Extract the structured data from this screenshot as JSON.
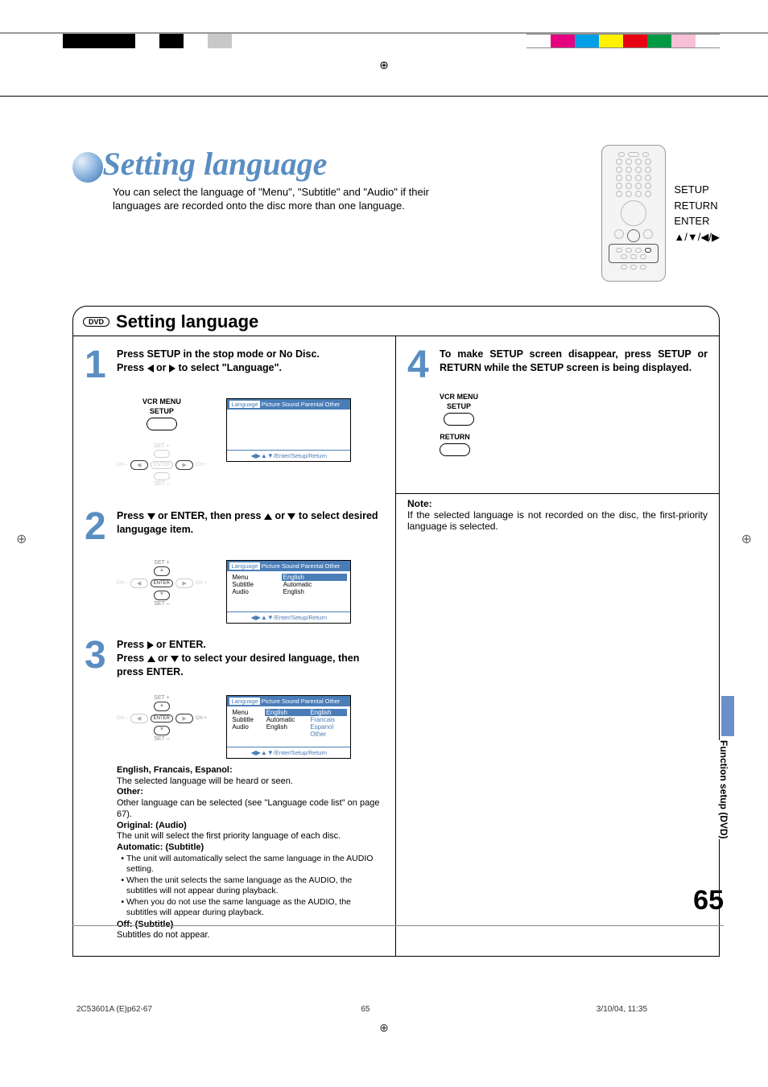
{
  "colorbar_left": [
    "#000000",
    "#000000",
    "#000000",
    "#ffffff",
    "#000000",
    "#ffffff",
    "#c8c8c8",
    "#ffffff"
  ],
  "colorbar_right": [
    "#ffffff",
    "#e4007f",
    "#00a0e9",
    "#fff100",
    "#e60012",
    "#009944",
    "#f6c1d6",
    "#ffffff"
  ],
  "title": "Setting language",
  "subtitle": "You can select the language of \"Menu\", \"Subtitle\" and \"Audio\" if their languages are recorded onto the disc more than one language.",
  "remote_labels": [
    "SETUP",
    "RETURN",
    "ENTER",
    "▲/▼/◀/▶"
  ],
  "section_badge": "DVD",
  "section_title": "Setting language",
  "step1": {
    "line1": "Press SETUP in the stop mode or No Disc.",
    "line2a": "Press ",
    "line2b": " or ",
    "line2c": " to select \"Language\".",
    "remote_lbl1": "VCR MENU",
    "remote_lbl2": "SETUP",
    "osd_tabs": [
      "Language",
      "Picture",
      "Sound",
      "Parental",
      "Other"
    ],
    "osd_foot": "/Enter/Setup/Return"
  },
  "step2": {
    "line1a": "Press ",
    "line1b": " or ENTER, then press ",
    "line1c": " or ",
    "line1d": " to select desired langugage item.",
    "osd_tabs": [
      "Language",
      "Picture",
      "Sound",
      "Parental",
      "Other"
    ],
    "rows": [
      {
        "k": "Menu",
        "v": "English",
        "hl": true
      },
      {
        "k": "Subtitle",
        "v": "Automatic",
        "hl": false
      },
      {
        "k": "Audio",
        "v": "English",
        "hl": false
      }
    ],
    "osd_foot": "/Enter/Setup/Return"
  },
  "step3": {
    "line1a": "Press ",
    "line1b": " or ENTER.",
    "line2a": "Press ",
    "line2b": " or ",
    "line2c": " to select your desired language, then press ENTER.",
    "osd_tabs": [
      "Language",
      "Picture",
      "Sound",
      "Parental",
      "Other"
    ],
    "rows": [
      {
        "k": "Menu",
        "v": "English",
        "opts": [
          "English",
          "Francais",
          "Espanol",
          "Other"
        ]
      },
      {
        "k": "Subtitle",
        "v": "Automatic"
      },
      {
        "k": "Audio",
        "v": "English"
      }
    ],
    "osd_foot": "/Enter/Setup/Return",
    "desc": {
      "h1": "English, Francais, Espanol:",
      "t1": "The selected language will be heard or seen.",
      "h2": "Other:",
      "t2": "Other language can be selected (see \"Language code list\" on page 67).",
      "h3": "Original: (Audio)",
      "t3": "The unit will select the first priority language of each disc.",
      "h4": "Automatic: (Subtitle)",
      "b1": "The unit will automatically select the same language in the AUDIO setting.",
      "b2": "When the unit selects the same language as the AUDIO, the subtitles  will not appear during playback.",
      "b3": "When you do not use the same language as the AUDIO, the subtitles  will appear during playback.",
      "h5": "Off: (Subtitle)",
      "t5": "Subtitles do not appear."
    }
  },
  "step4": {
    "text": "To make SETUP screen disappear, press SETUP or RETURN while the SETUP screen is being displayed.",
    "r1a": "VCR MENU",
    "r1b": "SETUP",
    "r2": "RETURN"
  },
  "note": {
    "h": "Note:",
    "t": "If the selected language is not recorded on the disc, the first-priority language is selected."
  },
  "side_tab": "Function setup  (DVD)",
  "page_num": "65",
  "footer": {
    "l": "2C53601A (E)p62-67",
    "c": "65",
    "r": "3/10/04, 11:35"
  }
}
